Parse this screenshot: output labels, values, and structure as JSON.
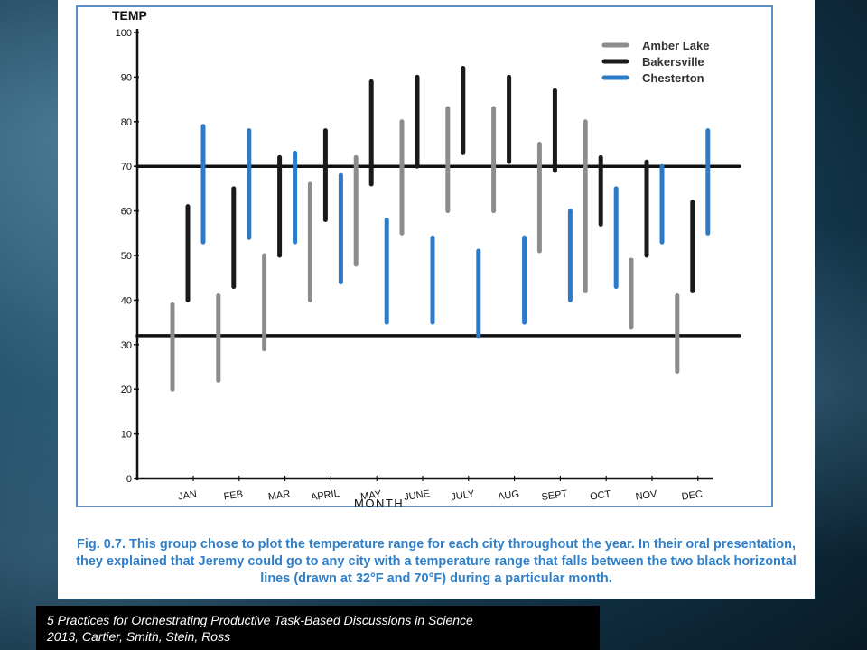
{
  "caption": "Fig. 0.7. This group chose to plot the temperature range for each city throughout the year. In their oral presentation, they explained that Jeremy could go to any city with a temperature range that falls between the two black horizontal lines (drawn at 32°F and 70°F) during a particular month.",
  "citation": {
    "line1": "5 Practices for Orchestrating Productive Task-Based Discussions in Science",
    "line2": "2013, Cartier, Smith, Stein, Ross"
  },
  "chart_data": {
    "type": "range-bar",
    "ylabel": "TEMP",
    "xlabel": "MONTH",
    "ylim": [
      0,
      100
    ],
    "yticks": [
      0,
      10,
      20,
      30,
      40,
      50,
      60,
      70,
      80,
      90,
      100
    ],
    "ytick_labels": [
      "0",
      "10",
      "20",
      "30",
      "40",
      "50",
      "60",
      "70",
      "80",
      "90",
      "100"
    ],
    "categories": [
      "JAN",
      "FEB",
      "MAR",
      "APRIL",
      "MAY",
      "JUNE",
      "JULY",
      "AUG",
      "SEPT",
      "OCT",
      "NOV",
      "DEC"
    ],
    "reference_lines": [
      32,
      70
    ],
    "legend_position": "top-right",
    "series": [
      {
        "name": "Amber Lake",
        "color": "#8c8c8c",
        "low": [
          20,
          22,
          29,
          40,
          48,
          55,
          60,
          60,
          51,
          42,
          34,
          24
        ],
        "high": [
          39,
          41,
          50,
          66,
          72,
          80,
          83,
          83,
          75,
          80,
          49,
          41
        ]
      },
      {
        "name": "Bakersville",
        "color": "#1a1a1a",
        "low": [
          40,
          43,
          50,
          58,
          66,
          70,
          73,
          71,
          69,
          57,
          50,
          42
        ],
        "high": [
          61,
          65,
          72,
          78,
          89,
          90,
          92,
          90,
          87,
          72,
          71,
          62
        ]
      },
      {
        "name": "Chesterton",
        "color": "#2b7bc8",
        "low": [
          53,
          54,
          53,
          44,
          35,
          35,
          32,
          35,
          40,
          43,
          53,
          55
        ],
        "high": [
          79,
          78,
          73,
          68,
          58,
          54,
          51,
          54,
          60,
          65,
          70,
          78
        ]
      }
    ]
  }
}
